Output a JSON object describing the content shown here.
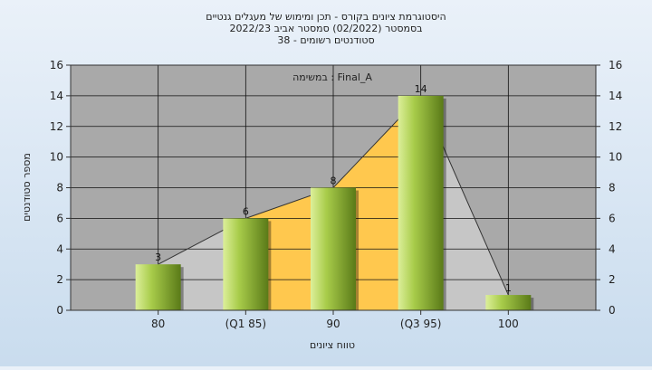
{
  "chart_data": {
    "type": "bar",
    "title_lines": [
      "היסטוגרמת ציונים בקורס - תכן ומימוש של מעגלים גנטיים",
      "בסמסטר  (02/2022)  סמסטר אביב 2022/23",
      "סטודנטים רשומים - 38"
    ],
    "subtitle": "במשימה : Final_A",
    "xlabel": "טווח ציונים",
    "ylabel": "מספר סטודנטים",
    "categories": [
      "80",
      "(Q1 85)",
      "90",
      "(Q3 95)",
      "100"
    ],
    "values": [
      3,
      6,
      8,
      14,
      1
    ],
    "data_labels": [
      "3",
      "6",
      "8",
      "14",
      "1"
    ],
    "ylim": [
      0,
      16
    ],
    "yticks": [
      "0",
      "2",
      "4",
      "6",
      "8",
      "10",
      "12",
      "14",
      "16"
    ],
    "right_axis": true,
    "grid": true,
    "colors": {
      "bar_light": "#dcef9a",
      "bar_mid": "#a8cc4a",
      "bar_dark": "#5a7a18",
      "area_gray": "#c6c6c6",
      "area_iqr": "#ffc84e",
      "plot_bg": "#a9a9a9"
    }
  }
}
